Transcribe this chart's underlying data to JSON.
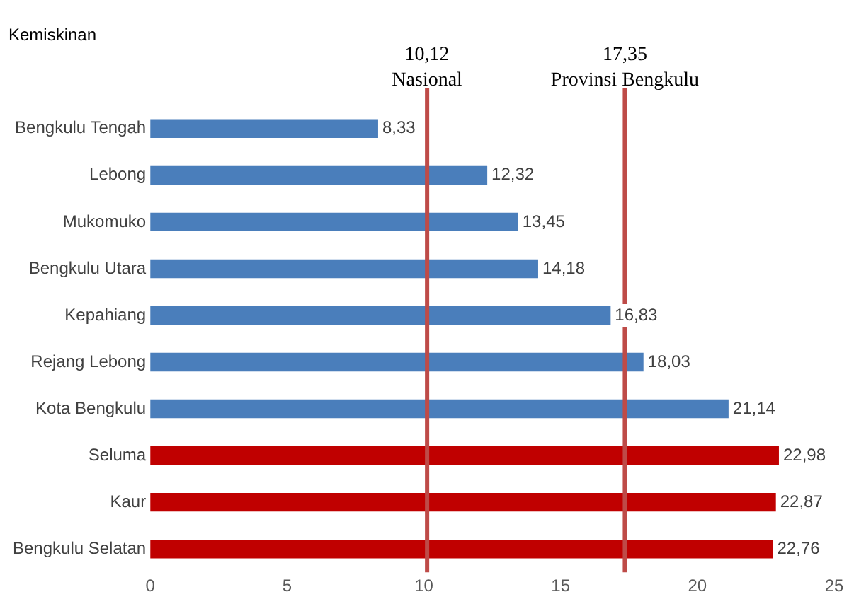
{
  "chart_data": {
    "type": "bar",
    "orientation": "horizontal",
    "title": "Kemiskinan",
    "categories": [
      "Bengkulu Tengah",
      "Lebong",
      "Mukomuko",
      "Bengkulu Utara",
      "Kepahiang",
      "Rejang Lebong",
      "Kota Bengkulu",
      "Seluma",
      "Kaur",
      "Bengkulu Selatan"
    ],
    "values": [
      8.33,
      12.32,
      13.45,
      14.18,
      16.83,
      18.03,
      21.14,
      22.98,
      22.87,
      22.76
    ],
    "value_labels": [
      "8,33",
      "12,32",
      "13,45",
      "14,18",
      "16,83",
      "18,03",
      "21,14",
      "22,98",
      "22,87",
      "22,76"
    ],
    "colors": [
      "#4a7ebb",
      "#4a7ebb",
      "#4a7ebb",
      "#4a7ebb",
      "#4a7ebb",
      "#4a7ebb",
      "#4a7ebb",
      "#c00000",
      "#c00000",
      "#c00000"
    ],
    "xlim": [
      0,
      25
    ],
    "xticks": [
      0,
      5,
      10,
      15,
      20,
      25
    ],
    "grid": false,
    "legend": false,
    "ref_lines": [
      {
        "axis": "x",
        "value": 10.12,
        "label": "10,12\nNasional",
        "color": "#be4b48"
      },
      {
        "axis": "x",
        "value": 17.35,
        "label": "17,35\nProvinsi Bengkulu",
        "color": "#be4b48"
      }
    ]
  }
}
